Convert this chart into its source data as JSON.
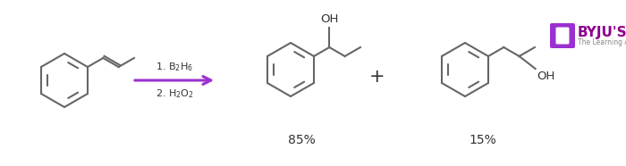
{
  "bg_color": "#ffffff",
  "arrow_color": "#9b30d0",
  "line_color": "#666666",
  "text_color": "#333333",
  "percent_major": "85%",
  "percent_minor": "15%",
  "plus_sign": "+",
  "reagent1": "1. B$_2$H$_6$",
  "reagent2": "2. H$_2$O$_2$",
  "byju_text": "BYJU'S",
  "byju_sub": "The Learning App",
  "byju_color": "#8B008B",
  "byju_box_color": "#9b30d0",
  "figsize": [
    7.0,
    1.86
  ],
  "dpi": 100
}
